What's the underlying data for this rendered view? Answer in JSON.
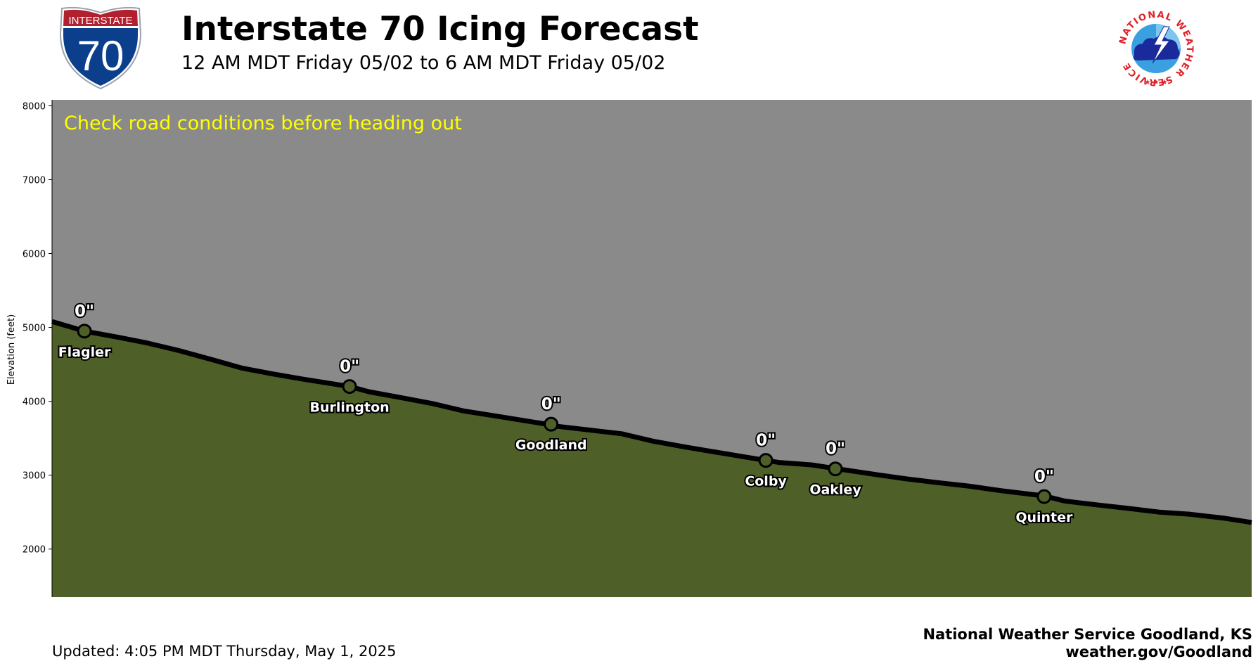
{
  "header": {
    "title": "Interstate 70 Icing Forecast",
    "subtitle": "12 AM MDT Friday 05/02 to 6 AM MDT Friday 05/02"
  },
  "shield": {
    "top_text": "INTERSTATE",
    "number": "70",
    "colors": {
      "blue": "#0b3f8c",
      "red": "#b0202e"
    }
  },
  "logo": {
    "icon": "nws-logo-icon",
    "ring_text": "NATIONAL WEATHER SERVICE"
  },
  "chart_data": {
    "type": "area",
    "title": "",
    "xlabel": "",
    "ylabel": "Elevation (feet)",
    "ylim": [
      1350,
      8080
    ],
    "xlim": [
      0,
      100
    ],
    "yticks": [
      2000,
      3000,
      4000,
      5000,
      6000,
      7000,
      8000
    ],
    "grid": false,
    "annotation": "Check road conditions before heading out",
    "colors": {
      "background": "#8a8a8a",
      "terrain": "#4e6028",
      "line": "#000000",
      "annotation": "#ffff00",
      "marker": "#4f5f2a"
    },
    "elevation_profile": [
      {
        "x": 0.0,
        "y": 5080
      },
      {
        "x": 2.7,
        "y": 4950
      },
      {
        "x": 5.4,
        "y": 4870
      },
      {
        "x": 7.9,
        "y": 4790
      },
      {
        "x": 10.5,
        "y": 4690
      },
      {
        "x": 13.2,
        "y": 4570
      },
      {
        "x": 15.8,
        "y": 4450
      },
      {
        "x": 18.4,
        "y": 4370
      },
      {
        "x": 20.9,
        "y": 4300
      },
      {
        "x": 24.8,
        "y": 4200
      },
      {
        "x": 26.4,
        "y": 4130
      },
      {
        "x": 29.1,
        "y": 4050
      },
      {
        "x": 31.7,
        "y": 3970
      },
      {
        "x": 34.3,
        "y": 3870
      },
      {
        "x": 37.0,
        "y": 3800
      },
      {
        "x": 41.6,
        "y": 3680
      },
      {
        "x": 42.2,
        "y": 3660
      },
      {
        "x": 47.5,
        "y": 3560
      },
      {
        "x": 50.1,
        "y": 3460
      },
      {
        "x": 52.8,
        "y": 3380
      },
      {
        "x": 55.4,
        "y": 3310
      },
      {
        "x": 59.5,
        "y": 3200
      },
      {
        "x": 60.7,
        "y": 3170
      },
      {
        "x": 63.3,
        "y": 3140
      },
      {
        "x": 65.3,
        "y": 3090
      },
      {
        "x": 68.6,
        "y": 3010
      },
      {
        "x": 71.2,
        "y": 2950
      },
      {
        "x": 73.8,
        "y": 2900
      },
      {
        "x": 76.5,
        "y": 2850
      },
      {
        "x": 79.1,
        "y": 2790
      },
      {
        "x": 82.7,
        "y": 2720
      },
      {
        "x": 84.4,
        "y": 2650
      },
      {
        "x": 87.0,
        "y": 2600
      },
      {
        "x": 89.7,
        "y": 2550
      },
      {
        "x": 92.3,
        "y": 2500
      },
      {
        "x": 94.9,
        "y": 2470
      },
      {
        "x": 97.6,
        "y": 2420
      },
      {
        "x": 100.0,
        "y": 2360
      }
    ],
    "locations": [
      {
        "name": "Flagler",
        "x": 2.7,
        "y": 4950,
        "ice": "0\""
      },
      {
        "name": "Burlington",
        "x": 24.8,
        "y": 4200,
        "ice": "0\""
      },
      {
        "name": "Goodland",
        "x": 41.6,
        "y": 3690,
        "ice": "0\""
      },
      {
        "name": "Colby",
        "x": 59.5,
        "y": 3200,
        "ice": "0\""
      },
      {
        "name": "Oakley",
        "x": 65.3,
        "y": 3085,
        "ice": "0\""
      },
      {
        "name": "Quinter",
        "x": 82.7,
        "y": 2710,
        "ice": "0\""
      }
    ]
  },
  "footer": {
    "updated": "Updated: 4:05 PM MDT Thursday, May 1, 2025",
    "office": "National Weather Service Goodland, KS",
    "website": "weather.gov/Goodland"
  }
}
